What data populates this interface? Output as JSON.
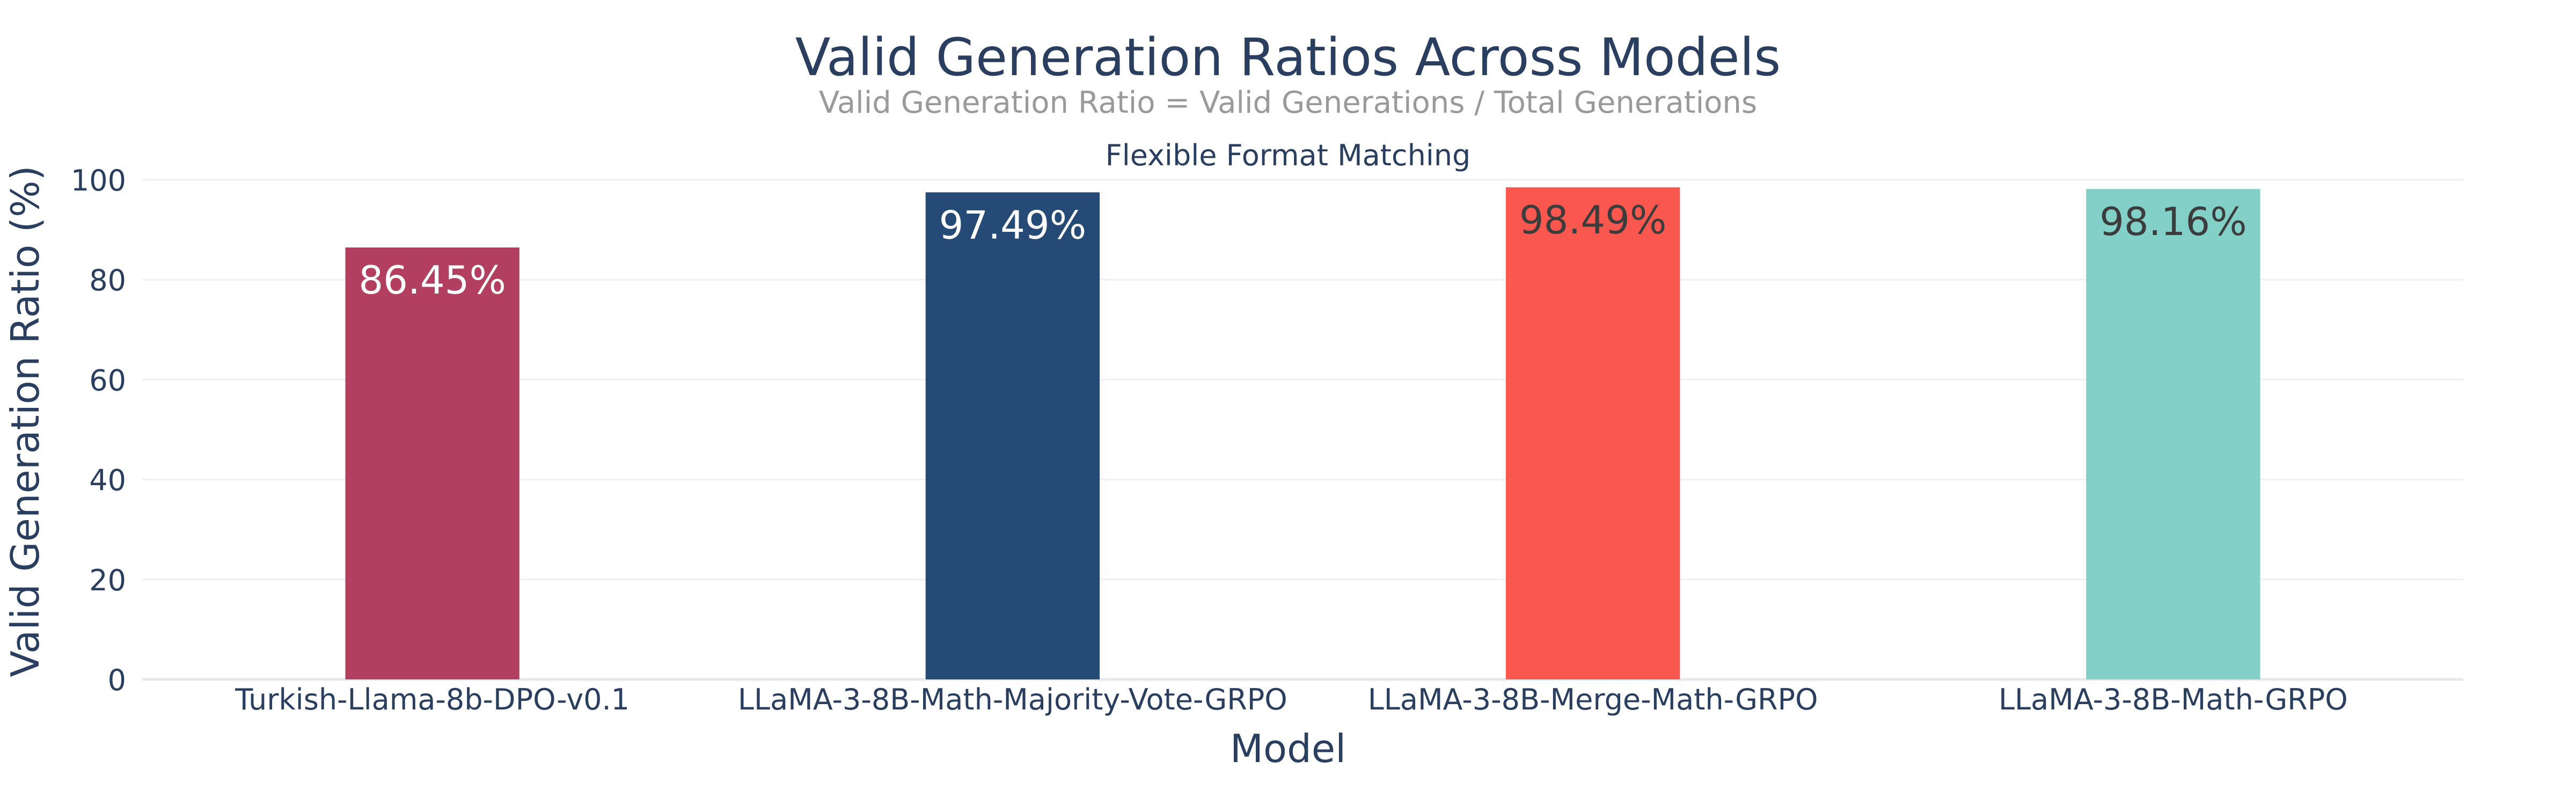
{
  "chart_data": {
    "type": "bar",
    "title": "Valid Generation Ratios Across Models",
    "subtitle": "Valid Generation Ratio = Valid Generations / Total Generations",
    "panel_title": "Flexible Format Matching",
    "xlabel": "Model",
    "ylabel": "Valid Generation Ratio (%)",
    "ylim": [
      0,
      100
    ],
    "yticks": [
      0,
      20,
      40,
      60,
      80,
      100
    ],
    "grid": true,
    "categories": [
      "Turkish-Llama-8b-DPO-v0.1",
      "LLaMA-3-8B-Math-Majority-Vote-GRPO",
      "LLaMA-3-8B-Merge-Math-GRPO",
      "LLaMA-3-8B-Math-GRPO"
    ],
    "values": [
      86.45,
      97.49,
      98.49,
      98.16
    ],
    "labels": [
      "86.45%",
      "97.49%",
      "98.49%",
      "98.16%"
    ],
    "colors": [
      "#b23f60",
      "#264a76",
      "#fa574f",
      "#83d0c9"
    ],
    "label_colors": [
      "#ffffff",
      "#ffffff",
      "#3c3c3c",
      "#3c3c3c"
    ]
  },
  "style": {
    "title_color": "#2a3f5f",
    "subtitle_color": "#9a9a9a",
    "grid_color": "#eef0f4"
  }
}
